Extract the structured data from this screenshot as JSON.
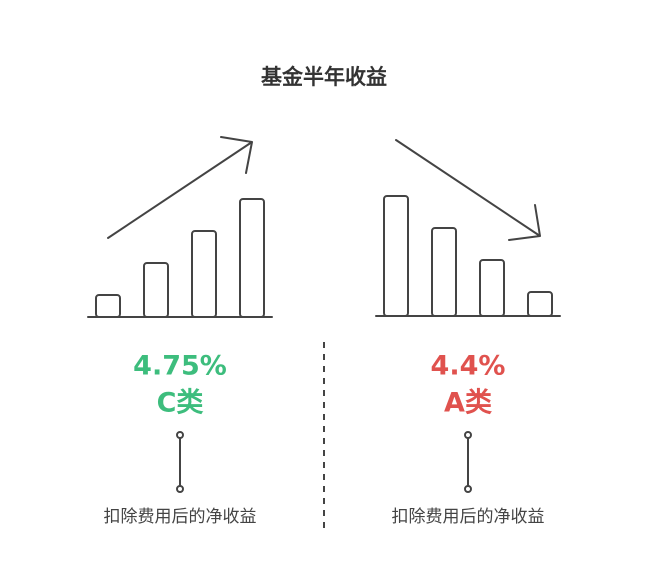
{
  "title": "基金半年收益",
  "panels": [
    {
      "value": "4.75%",
      "label": "C类",
      "caption": "扣除费用后的净收益"
    },
    {
      "value": "4.4%",
      "label": "A类",
      "caption": "扣除费用后的净收益"
    }
  ]
}
